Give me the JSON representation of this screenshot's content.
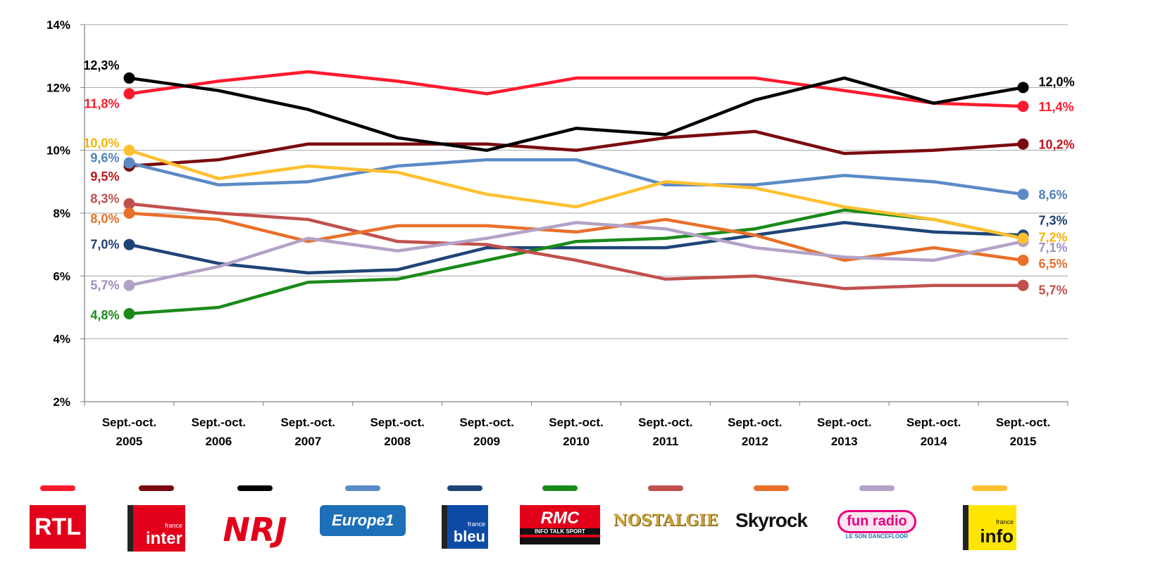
{
  "chart_data": {
    "type": "line",
    "categories": [
      "Sept.-oct.\n2005",
      "Sept.-oct.\n2006",
      "Sept.-oct.\n2007",
      "Sept.-oct.\n2008",
      "Sept.-oct.\n2009",
      "Sept.-oct.\n2010",
      "Sept.-oct.\n2011",
      "Sept.-oct.\n2012",
      "Sept.-oct.\n2013",
      "Sept.-oct.\n2014",
      "Sept.-oct.\n2015"
    ],
    "category_lines": [
      [
        "Sept.-oct.",
        "2005"
      ],
      [
        "Sept.-oct.",
        "2006"
      ],
      [
        "Sept.-oct.",
        "2007"
      ],
      [
        "Sept.-oct.",
        "2008"
      ],
      [
        "Sept.-oct.",
        "2009"
      ],
      [
        "Sept.-oct.",
        "2010"
      ],
      [
        "Sept.-oct.",
        "2011"
      ],
      [
        "Sept.-oct.",
        "2012"
      ],
      [
        "Sept.-oct.",
        "2013"
      ],
      [
        "Sept.-oct.",
        "2014"
      ],
      [
        "Sept.-oct.",
        "2015"
      ]
    ],
    "ylim": [
      2,
      14
    ],
    "y_ticks": [
      2,
      4,
      6,
      8,
      10,
      12,
      14
    ],
    "y_tick_labels": [
      "2%",
      "4%",
      "6%",
      "8%",
      "10%",
      "12%",
      "14%"
    ],
    "grid": true,
    "legend": "bottom",
    "series": [
      {
        "name": "RTL",
        "color": "#ff1a2e",
        "values": [
          11.8,
          12.2,
          12.5,
          12.2,
          11.8,
          12.3,
          12.3,
          12.3,
          11.9,
          11.5,
          11.4
        ],
        "start_label": "11,8%",
        "end_label": "11,4%",
        "start_label_color": "#ff1a2e",
        "end_label_color": "#ff1a2e"
      },
      {
        "name": "France Inter",
        "color": "#7a0a0f",
        "values": [
          9.5,
          9.7,
          10.2,
          10.2,
          10.2,
          10.0,
          10.4,
          10.6,
          9.9,
          10.0,
          10.2
        ],
        "start_label": "9,5%",
        "end_label": "10,2%",
        "start_label_color": "#c0121c",
        "end_label_color": "#c0121c"
      },
      {
        "name": "NRJ",
        "color": "#000000",
        "values": [
          12.3,
          11.9,
          11.3,
          10.4,
          10.0,
          10.7,
          10.5,
          11.6,
          12.3,
          11.5,
          12.0
        ],
        "start_label": "12,3%",
        "end_label": "12,0%",
        "start_label_color": "#000000",
        "end_label_color": "#000000"
      },
      {
        "name": "Europe 1",
        "color": "#5b8ac6",
        "values": [
          9.6,
          8.9,
          9.0,
          9.5,
          9.7,
          9.7,
          8.9,
          8.9,
          9.2,
          9.0,
          8.6
        ],
        "start_label": "9,6%",
        "end_label": "8,6%",
        "start_label_color": "#4f81bd",
        "end_label_color": "#4f81bd"
      },
      {
        "name": "France Bleu",
        "color": "#1f4577",
        "values": [
          7.0,
          6.4,
          6.1,
          6.2,
          6.9,
          6.9,
          6.9,
          7.3,
          7.7,
          7.4,
          7.3
        ],
        "start_label": "7,0%",
        "end_label": "7,3%",
        "start_label_color": "#1f3f70",
        "end_label_color": "#1f3f70"
      },
      {
        "name": "RMC",
        "color": "#1a8a1a",
        "values": [
          4.8,
          5.0,
          5.8,
          5.9,
          6.5,
          7.1,
          7.2,
          7.5,
          8.1,
          7.8,
          7.2
        ],
        "start_label": "4,8%",
        "end_label": "",
        "start_label_color": "#1a8a1a",
        "end_label_color": "#1a8a1a"
      },
      {
        "name": "Nostalgie",
        "color": "#c0504d",
        "values": [
          8.3,
          8.0,
          7.8,
          7.1,
          7.0,
          6.5,
          5.9,
          6.0,
          5.6,
          5.7,
          5.7
        ],
        "start_label": "8,3%",
        "end_label": "5,7%",
        "start_label_color": "#c0504d",
        "end_label_color": "#c0504d"
      },
      {
        "name": "Skyrock",
        "color": "#e8702a",
        "values": [
          8.0,
          7.8,
          7.1,
          7.6,
          7.6,
          7.4,
          7.8,
          7.3,
          6.5,
          6.9,
          6.5
        ],
        "start_label": "8,0%",
        "end_label": "6,5%",
        "start_label_color": "#e8702a",
        "end_label_color": "#e8702a"
      },
      {
        "name": "Fun Radio",
        "color": "#b3a2c7",
        "values": [
          5.7,
          6.3,
          7.2,
          6.8,
          7.2,
          7.7,
          7.5,
          6.9,
          6.6,
          6.5,
          7.1
        ],
        "start_label": "5,7%",
        "end_label": "7,1%",
        "start_label_color": "#a08dbf",
        "end_label_color": "#a08dbf"
      },
      {
        "name": "France Info",
        "color": "#fec030",
        "values": [
          10.0,
          9.1,
          9.5,
          9.3,
          8.6,
          8.2,
          9.0,
          8.8,
          8.2,
          7.8,
          7.2
        ],
        "start_label": "10,0%",
        "end_label": "7,2%",
        "start_label_color": "#f4b400",
        "end_label_color": "#f4b400"
      }
    ]
  },
  "legend": [
    {
      "logo_text": [
        "RTL"
      ],
      "logo": "rtl-logo",
      "color": "#ff1a2e"
    },
    {
      "logo_text": [
        "france",
        "inter"
      ],
      "logo": "france-inter-logo",
      "color": "#7a0a0f"
    },
    {
      "logo_text": [
        "NRJ"
      ],
      "logo": "nrj-logo",
      "color": "#000000"
    },
    {
      "logo_text": [
        "Europe1"
      ],
      "logo": "europe1-logo",
      "color": "#5b8ac6"
    },
    {
      "logo_text": [
        "france",
        "bleu"
      ],
      "logo": "france-bleu-logo",
      "color": "#1f4577"
    },
    {
      "logo_text": [
        "RMC",
        "INFO TALK SPORT"
      ],
      "logo": "rmc-logo",
      "color": "#1a8a1a"
    },
    {
      "logo_text": [
        "NOSTALGIE"
      ],
      "logo": "nostalgie-logo",
      "color": "#c0504d"
    },
    {
      "logo_text": [
        "Skyrock"
      ],
      "logo": "skyrock-logo",
      "color": "#e8702a"
    },
    {
      "logo_text": [
        "fun radio",
        "LE SON DANCEFLOOR"
      ],
      "logo": "fun-radio-logo",
      "color": "#b3a2c7"
    },
    {
      "logo_text": [
        "france",
        "info"
      ],
      "logo": "france-info-logo",
      "color": "#fec030"
    }
  ]
}
